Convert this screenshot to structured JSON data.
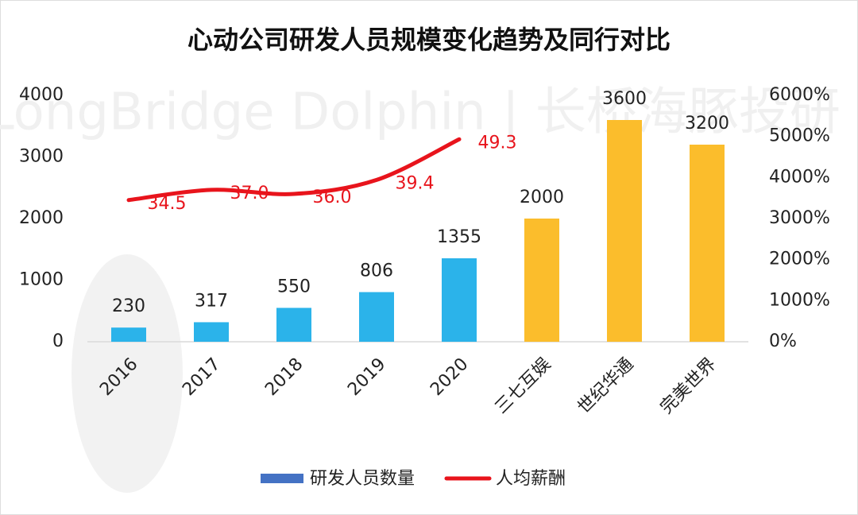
{
  "chart_data": {
    "type": "bar-line",
    "title": "心动公司研发人员规模变化趋势及同行对比",
    "watermark": "LongBridge Dolphin | 长桥海豚投研",
    "categories": [
      "2016",
      "2017",
      "2018",
      "2019",
      "2020",
      "三七互娱",
      "世纪华通",
      "完美世界"
    ],
    "series": [
      {
        "name": "研发人员数量",
        "type": "bar",
        "color": "#4472c4",
        "colors": [
          "#2bb3ea",
          "#2bb3ea",
          "#2bb3ea",
          "#2bb3ea",
          "#2bb3ea",
          "#fbbd2c",
          "#fbbd2c",
          "#fbbd2c"
        ],
        "values": [
          230,
          317,
          550,
          806,
          1355,
          2000,
          3600,
          3200
        ]
      },
      {
        "name": "人均薪酬",
        "type": "line",
        "axis": "y2",
        "color": "#e8141c",
        "values": [
          34.5,
          37.0,
          36.0,
          39.4,
          49.3,
          null,
          null,
          null
        ],
        "value_labels": [
          "34.5",
          "37.0",
          "36.0",
          "39.4",
          "49.3",
          null,
          null,
          null
        ]
      }
    ],
    "ylim": [
      0,
      4000
    ],
    "yticks": [
      0,
      1000,
      2000,
      3000,
      4000
    ],
    "y2lim": [
      0,
      60
    ],
    "y2ticks": [
      {
        "value": 0,
        "label": "0%"
      },
      {
        "value": 10,
        "label": "1000%"
      },
      {
        "value": 20,
        "label": "2000%"
      },
      {
        "value": 30,
        "label": "3000%"
      },
      {
        "value": 40,
        "label": "4000%"
      },
      {
        "value": 50,
        "label": "5000%"
      },
      {
        "value": 60,
        "label": "6000%"
      }
    ],
    "legend": "bottom"
  }
}
